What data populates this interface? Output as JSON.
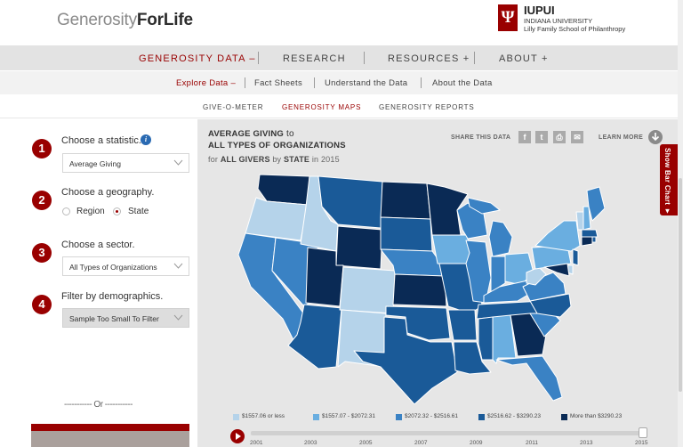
{
  "header": {
    "logo_part1": "Generosity",
    "logo_part2": "ForLife",
    "iu_mark": "Ψ",
    "iu_title": "IUPUI",
    "iu_line2": "INDIANA UNIVERSITY",
    "iu_line3": "Lilly Family School of Philanthropy"
  },
  "nav_primary": [
    {
      "label": "GENEROSITY DATA –",
      "active": true
    },
    {
      "label": "RESEARCH",
      "active": false
    },
    {
      "label": "RESOURCES +",
      "active": false
    },
    {
      "label": "ABOUT +",
      "active": false
    }
  ],
  "nav_secondary": [
    {
      "label": "Explore Data –",
      "active": true
    },
    {
      "label": "Fact Sheets",
      "active": false
    },
    {
      "label": "Understand the Data",
      "active": false
    },
    {
      "label": "About the Data",
      "active": false
    }
  ],
  "nav_tertiary": [
    {
      "label": "GIVE-O-METER",
      "active": false
    },
    {
      "label": "GENEROSITY MAPS",
      "active": true
    },
    {
      "label": "GENEROSITY REPORTS",
      "active": false
    }
  ],
  "sidebar": {
    "steps": [
      {
        "number": "1",
        "label": "Choose a statistic."
      },
      {
        "number": "2",
        "label": "Choose a geography."
      },
      {
        "number": "3",
        "label": "Choose a sector."
      },
      {
        "number": "4",
        "label": "Filter by demographics."
      }
    ],
    "info_icon": "i",
    "statistic_value": "Average Giving",
    "geography_options": [
      {
        "label": "Region",
        "selected": false
      },
      {
        "label": "State",
        "selected": true
      }
    ],
    "sector_value": "All Types of Organizations",
    "demographics_value": "Sample Too Small To Filter",
    "or_divider": "----------- Or -----------"
  },
  "map_header": {
    "title_bold": "AVERAGE GIVING",
    "title_suffix": " to",
    "subtitle": "ALL TYPES OF ORGANIZATIONS",
    "caption_prefix": "for ",
    "caption_bold": "ALL GIVERS",
    "caption_mid": " by ",
    "caption_bold2": "STATE",
    "caption_suffix": " in 2015",
    "share_label": "SHARE THIS DATA",
    "share_buttons": [
      "f",
      "t",
      "⎙",
      "✉"
    ],
    "learn_more": "LEARN MORE",
    "side_tab": "Show Bar Chart ▼"
  },
  "legend": [
    {
      "label": "$1557.06 or less",
      "color": "#b5d3ea"
    },
    {
      "label": "$1557.07 - $2072.31",
      "color": "#6aaee0"
    },
    {
      "label": "$2072.32 - $2516.61",
      "color": "#3a82c4"
    },
    {
      "label": "$2516.62 - $3290.23",
      "color": "#1a5a98"
    },
    {
      "label": "More than $3290.23",
      "color": "#0a2a55"
    }
  ],
  "timeline": {
    "years": [
      "2001",
      "2003",
      "2005",
      "2007",
      "2009",
      "2011",
      "2013",
      "2015"
    ],
    "selected_year": "2015"
  }
}
